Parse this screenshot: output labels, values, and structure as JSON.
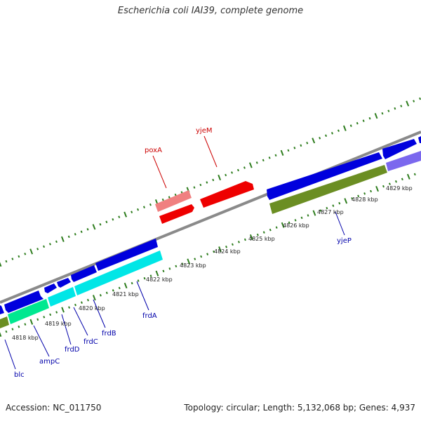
{
  "title": "Escherichia coli IAI39, complete genome",
  "footer": {
    "accession": "Accession: NC_011750",
    "summary": "Topology: circular; Length: 5,132,068 bp; Genes: 4,937"
  },
  "colors": {
    "backbone": "#8a8a8a",
    "tick_major": "#2e7d1e",
    "tick_minor": "#2e7d1e",
    "forward_gene": "#0000dd",
    "reverse_red": "#ee0000",
    "reverse_pink": "#f08080",
    "cyan_gene": "#00e6e6",
    "green_gene": "#00e890",
    "olive_gene": "#6b8e23",
    "slate_gene": "#7b68ee",
    "label_blue": "#0000aa",
    "label_red": "#cc0000"
  },
  "scale": {
    "unit": "kbp",
    "ticks": [
      {
        "value": 4818,
        "label": "4818 kbp"
      },
      {
        "value": 4819,
        "label": "4819 kbp"
      },
      {
        "value": 4820,
        "label": "4820 kbp"
      },
      {
        "value": 4821,
        "label": "4821 kbp"
      },
      {
        "value": 4822,
        "label": "4822 kbp"
      },
      {
        "value": 4823,
        "label": "4823 kbp"
      },
      {
        "value": 4824,
        "label": "4824 kbp"
      },
      {
        "value": 4825,
        "label": "4825 kbp"
      },
      {
        "value": 4826,
        "label": "4826 kbp"
      },
      {
        "value": 4827,
        "label": "4827 kbp"
      },
      {
        "value": 4828,
        "label": "4828 kbp"
      },
      {
        "value": 4829,
        "label": "4829 kbp"
      }
    ]
  },
  "genes": [
    {
      "name": "blc",
      "color_key": "label_blue"
    },
    {
      "name": "ampC",
      "color_key": "label_blue"
    },
    {
      "name": "frdD",
      "color_key": "label_blue"
    },
    {
      "name": "frdC",
      "color_key": "label_blue"
    },
    {
      "name": "frdB",
      "color_key": "label_blue"
    },
    {
      "name": "frdA",
      "color_key": "label_blue"
    },
    {
      "name": "yjeP",
      "color_key": "label_blue"
    },
    {
      "name": "poxA",
      "color_key": "label_red"
    },
    {
      "name": "yjeM",
      "color_key": "label_red"
    }
  ]
}
